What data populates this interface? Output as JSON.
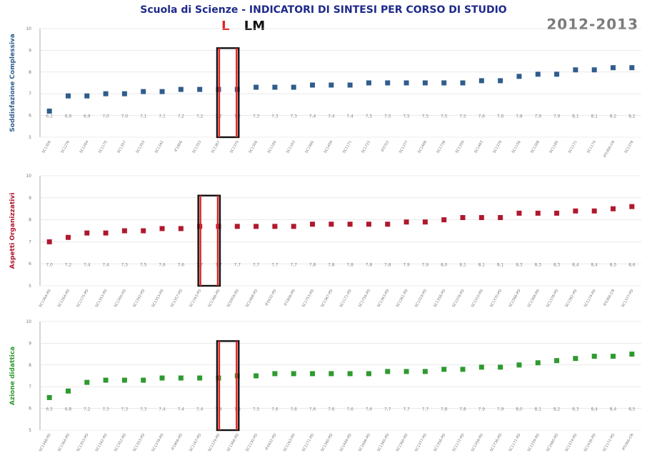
{
  "header": {
    "title": "Scuola di Scienze - INDICATORI DI SINTESI PER CORSO DI STUDIO",
    "year": "2012-2013",
    "legend_l": "L",
    "legend_lm": "LM",
    "legend_l_color": "#e32222",
    "legend_lm_color": "#111111"
  },
  "chart_data": [
    {
      "type": "scatter",
      "ylabel": "Soddisfazione Complessiva",
      "ylim": [
        5,
        10
      ],
      "yticks": [
        5,
        6,
        7,
        8,
        9,
        10
      ],
      "color": "#2f5d8c",
      "grid": false,
      "categories": [
        "SC1306",
        "SC1276",
        "SC1264",
        "SC1175",
        "SC1357",
        "SC1353",
        "SC1342",
        "IF1806",
        "SC1353",
        "SC1367",
        "SC1370",
        "SC1306",
        "SC1160",
        "SC1163",
        "SC1960",
        "SC1459",
        "SC1171",
        "SC1722",
        "IF0702",
        "SC1377",
        "SC1468",
        "SC1738",
        "SC1359",
        "SC1463",
        "SC1379",
        "SC1156",
        "SC1268",
        "SC1160",
        "SC1171",
        "SC1174",
        "IF0366-CN",
        "SC1378"
      ],
      "values": [
        6.2,
        6.9,
        6.9,
        7.0,
        7.0,
        7.1,
        7.1,
        7.2,
        7.2,
        7.2,
        7.2,
        7.3,
        7.3,
        7.3,
        7.4,
        7.4,
        7.4,
        7.5,
        7.5,
        7.5,
        7.5,
        7.5,
        7.5,
        7.6,
        7.6,
        7.8,
        7.9,
        7.9,
        8.1,
        8.1,
        8.2,
        8.2
      ],
      "labels": [
        "6,2",
        "6,9",
        "6,9",
        "7,0",
        "7,0",
        "7,1",
        "7,1",
        "7,2",
        "7,2",
        "7,2",
        "7,2",
        "7,3",
        "7,3",
        "7,3",
        "7,4",
        "7,4",
        "7,4",
        "7,5",
        "7,5",
        "7,5",
        "7,5",
        "7,5",
        "7,5",
        "7,6",
        "7,6",
        "7,8",
        "7,9",
        "7,9",
        "8,1",
        "8,1",
        "8,2",
        "8,2"
      ],
      "highlight": {
        "l_index": 9.5,
        "lm_index": 10.5
      }
    },
    {
      "type": "scatter",
      "ylabel": "Aspetti Organizzativi",
      "ylim": [
        5,
        10
      ],
      "yticks": [
        5,
        6,
        7,
        8,
        9,
        10
      ],
      "color": "#b0182e",
      "grid": false,
      "categories": [
        "SC1364-PD",
        "SC1264-PD",
        "SC1175-PD",
        "SC1353-PD",
        "SC1300-PD",
        "SC1342-PD",
        "SC1353-PD",
        "SC1357-PD",
        "SC1163-PD",
        "SC1366-PD",
        "SC0959-PD",
        "SC1468-PD",
        "IF0432-PD",
        "IF1806-PD",
        "SC1753-PD",
        "SC1367-PD",
        "SC1171-PD",
        "SC1756-PD",
        "SC1363-PD",
        "SC1361-PD",
        "SC1319-PD",
        "SC1358-PD",
        "SC1378-PD",
        "SC1310-PD",
        "SC1370-PD",
        "SC1566-PD",
        "SC1368-PD",
        "SC1378-PD",
        "SC1382-PD",
        "SC1174-PD",
        "IF0366-CN",
        "SC1377-PD"
      ],
      "values": [
        7.0,
        7.2,
        7.4,
        7.4,
        7.5,
        7.5,
        7.6,
        7.6,
        7.7,
        7.7,
        7.7,
        7.7,
        7.7,
        7.7,
        7.8,
        7.8,
        7.8,
        7.8,
        7.8,
        7.9,
        7.9,
        8.0,
        8.1,
        8.1,
        8.1,
        8.3,
        8.3,
        8.3,
        8.4,
        8.4,
        8.5,
        8.6
      ],
      "labels": [
        "7,0",
        "7,2",
        "7,4",
        "7,4",
        "7,5",
        "7,5",
        "7,6",
        "7,6",
        "7,7",
        "7,7",
        "7,7",
        "7,7",
        "7,7",
        "7,7",
        "7,8",
        "7,8",
        "7,8",
        "7,8",
        "7,8",
        "7,9",
        "7,9",
        "8,0",
        "8,1",
        "8,1",
        "8,1",
        "8,3",
        "8,3",
        "8,3",
        "8,4",
        "8,4",
        "8,5",
        "8,6"
      ],
      "highlight": {
        "l_index": 9.5,
        "lm_index": 8.5
      }
    },
    {
      "type": "scatter",
      "ylabel": "Azione didattica",
      "ylim": [
        5,
        10
      ],
      "yticks": [
        5,
        6,
        7,
        8,
        9,
        10
      ],
      "color": "#2e9a2e",
      "grid": false,
      "categories": [
        "SC1348-PD",
        "SC1364-PD",
        "SC1353-PD",
        "SC1342-PD",
        "SC1352-PD",
        "SC1353-PD",
        "SC1378-PD",
        "IF1806-PD",
        "SC1167-PD",
        "SC1379-PD",
        "SC1366-PD",
        "SC1130-PD",
        "IF0432-PD",
        "SC1163-PD",
        "SC1171-PD",
        "SC1360-PD",
        "SC1449-PD",
        "SC1696-PD",
        "SC1360-PD",
        "SC1360-PD",
        "SC1377-PD",
        "SC1356-PD",
        "SC1172-PD",
        "SC1358-PD",
        "SC1736-PD",
        "SC1171-PD",
        "SC1209-PD",
        "SC1660-PD",
        "SC1374-PD",
        "SC1436-PD",
        "SC1171-PD",
        "IF0366-CN"
      ],
      "values": [
        6.5,
        6.8,
        7.2,
        7.3,
        7.3,
        7.3,
        7.4,
        7.4,
        7.4,
        7.4,
        7.5,
        7.5,
        7.6,
        7.6,
        7.6,
        7.6,
        7.6,
        7.6,
        7.7,
        7.7,
        7.7,
        7.8,
        7.8,
        7.9,
        7.9,
        8.0,
        8.1,
        8.2,
        8.3,
        8.4,
        8.4,
        8.5
      ],
      "labels": [
        "6,5",
        "6,8",
        "7,2",
        "7,3",
        "7,3",
        "7,3",
        "7,4",
        "7,4",
        "7,4",
        "7,4",
        "7,5",
        "7,5",
        "7,6",
        "7,6",
        "7,6",
        "7,6",
        "7,6",
        "7,6",
        "7,7",
        "7,7",
        "7,7",
        "7,8",
        "7,8",
        "7,9",
        "7,9",
        "8,0",
        "8,1",
        "8,2",
        "8,3",
        "8,4",
        "8,4",
        "8,5"
      ],
      "highlight": {
        "l_index": 9.5,
        "lm_index": 10.5
      }
    }
  ]
}
